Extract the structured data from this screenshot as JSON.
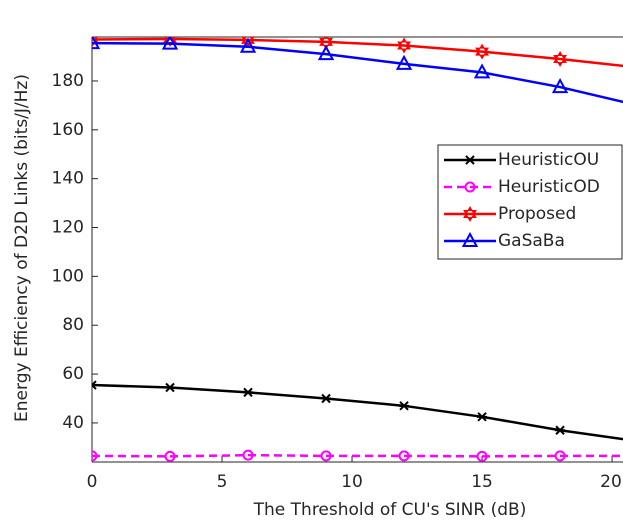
{
  "chart_data": {
    "type": "line",
    "xlabel": "The Threshold of CU's SINR (dB)",
    "ylabel": "Energy Efficiency of D2D Links (bits/J/Hz)",
    "x": [
      0,
      3,
      6,
      9,
      12,
      15,
      18,
      21
    ],
    "series": [
      {
        "name": "HeuristicOU",
        "color": "#000000",
        "marker": "x",
        "linestyle": "solid",
        "values": [
          55.5,
          54.5,
          52.5,
          50,
          47,
          42.5,
          37,
          32.5
        ]
      },
      {
        "name": "HeuristicOD",
        "color": "#ff00ff",
        "marker": "o",
        "linestyle": "dashed",
        "values": [
          26.5,
          26.3,
          26.8,
          26.5,
          26.5,
          26.3,
          26.5,
          26.5
        ]
      },
      {
        "name": "Proposed",
        "color": "#ff0000",
        "marker": "hexagram",
        "linestyle": "solid",
        "values": [
          197,
          197.2,
          196.8,
          196,
          194.5,
          192,
          189,
          185.5
        ]
      },
      {
        "name": "GaSaBa",
        "color": "#0000ff",
        "marker": "^",
        "linestyle": "solid",
        "values": [
          195.5,
          195.3,
          194,
          191,
          187,
          183.5,
          177.5,
          170
        ]
      }
    ],
    "xlim": [
      0,
      20.42
    ],
    "xticks": [
      0,
      5,
      10,
      15,
      20
    ],
    "ylim": [
      24,
      198
    ],
    "yticks": [
      40,
      60,
      80,
      100,
      120,
      140,
      160,
      180
    ],
    "legend": "right"
  }
}
